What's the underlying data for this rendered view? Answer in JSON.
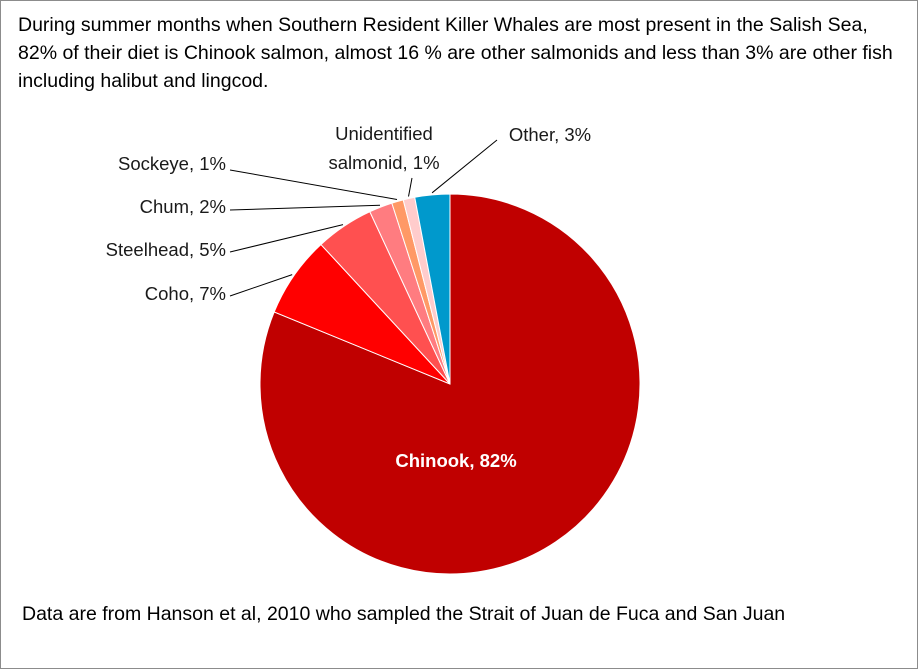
{
  "caption_top": "During summer months when Southern Resident Killer Whales are most present in the Salish Sea, 82% of their diet is Chinook salmon, almost 16 % are other salmonids and less than 3% are other fish including halibut and lingcod.",
  "caption_bottom": "Data are from Hanson et al, 2010 who sampled the Strait of Juan de Fuca and San Juan",
  "chart_data": {
    "type": "pie",
    "title": "",
    "slices": [
      {
        "label": "Chinook",
        "value": 82,
        "display": "Chinook, 82%",
        "color": "#c00000"
      },
      {
        "label": "Coho",
        "value": 7,
        "display": "Coho, 7%",
        "color": "#ff0000"
      },
      {
        "label": "Steelhead",
        "value": 5,
        "display": "Steelhead, 5%",
        "color": "#ff5050"
      },
      {
        "label": "Chum",
        "value": 2,
        "display": "Chum, 2%",
        "color": "#ff7c80"
      },
      {
        "label": "Sockeye",
        "value": 1,
        "display": "Sockeye, 1%",
        "color": "#ff9966"
      },
      {
        "label": "Unidentified salmonid",
        "value": 1,
        "display": "Unidentified salmonid, 1%",
        "color": "#ffcccc"
      },
      {
        "label": "Other",
        "value": 3,
        "display": "Other, 3%",
        "color": "#0099cc"
      }
    ]
  }
}
